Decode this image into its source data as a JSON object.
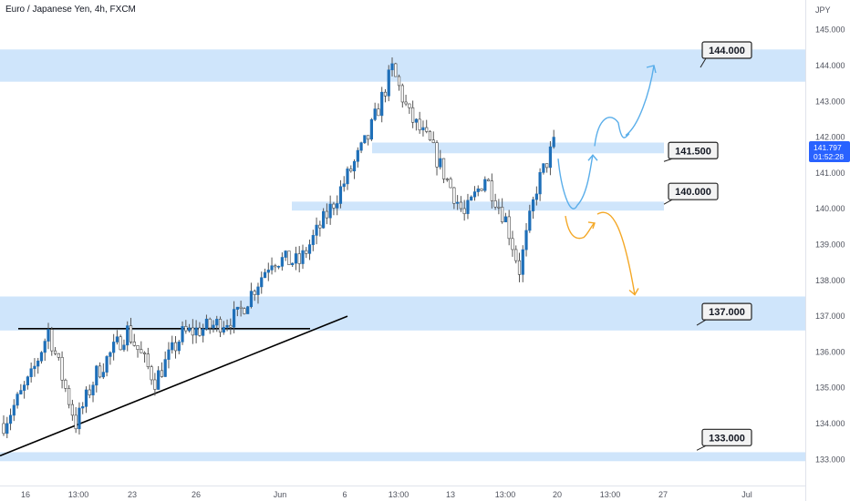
{
  "header": {
    "symbol_title": "Euro / Japanese Yen, 4h, FXCM"
  },
  "price_axis": {
    "currency": "JPY",
    "ticks": [
      "145.000",
      "144.000",
      "143.000",
      "142.000",
      "141.000",
      "140.000",
      "139.000",
      "138.000",
      "137.000",
      "136.000",
      "135.000",
      "134.000",
      "133.000"
    ]
  },
  "time_axis": {
    "ticks": [
      "16",
      "13:00",
      "23",
      "26",
      "Jun",
      "6",
      "13:00",
      "13",
      "13:00",
      "20",
      "13:00",
      "27",
      "Jul"
    ]
  },
  "last_price": {
    "value": "141.797",
    "countdown": "01:52:28",
    "color": "#2962ff"
  },
  "levels": [
    {
      "label": "144.000"
    },
    {
      "label": "141.500"
    },
    {
      "label": "140.000"
    },
    {
      "label": "137.000"
    },
    {
      "label": "133.000"
    }
  ],
  "colors": {
    "zone": "#cfe5fb",
    "candle_up": "#1e6fb8",
    "candle_down": "#ffffff",
    "wick": "#555555",
    "bull_path": "#5aaeea",
    "bear_path": "#f4a827",
    "trendline": "#000000"
  },
  "chart_data": {
    "type": "candlestick",
    "title": "Euro / Japanese Yen, 4h, FXCM",
    "y_unit": "JPY",
    "ylim": [
      132.9,
      145.25
    ],
    "x_tick_labels": [
      "16",
      "13:00",
      "23",
      "26",
      "Jun",
      "6",
      "13:00",
      "13",
      "13:00",
      "20",
      "13:00",
      "27",
      "Jul"
    ],
    "price_pivots": [
      {
        "i": 0,
        "p": 134.0
      },
      {
        "i": 8,
        "p": 135.3
      },
      {
        "i": 13,
        "p": 136.6
      },
      {
        "i": 21,
        "p": 134.0
      },
      {
        "i": 27,
        "p": 135.4
      },
      {
        "i": 36,
        "p": 136.6
      },
      {
        "i": 44,
        "p": 135.2
      },
      {
        "i": 52,
        "p": 136.5
      },
      {
        "i": 60,
        "p": 136.7
      },
      {
        "i": 68,
        "p": 137.0
      },
      {
        "i": 78,
        "p": 138.6
      },
      {
        "i": 86,
        "p": 138.5
      },
      {
        "i": 95,
        "p": 140.0
      },
      {
        "i": 106,
        "p": 142.0
      },
      {
        "i": 113,
        "p": 143.9
      },
      {
        "i": 118,
        "p": 142.6
      },
      {
        "i": 124,
        "p": 141.8
      },
      {
        "i": 128,
        "p": 141.0
      },
      {
        "i": 134,
        "p": 139.8
      },
      {
        "i": 140,
        "p": 140.9
      },
      {
        "i": 146,
        "p": 139.7
      },
      {
        "i": 150,
        "p": 138.3
      },
      {
        "i": 155,
        "p": 140.6
      },
      {
        "i": 160,
        "p": 141.8
      }
    ],
    "zones": [
      {
        "low": 143.55,
        "high": 144.45
      },
      {
        "low": 141.55,
        "high": 141.85
      },
      {
        "low": 139.95,
        "high": 140.2
      },
      {
        "low": 136.6,
        "high": 137.55
      },
      {
        "low": 132.95,
        "high": 133.2
      }
    ],
    "horizontal_resistance": 136.65,
    "rising_trendline": [
      {
        "i": 0,
        "p": 133.1
      },
      {
        "i": 100,
        "p": 137.0
      }
    ],
    "projection_bullish": [
      141.4,
      140.1,
      141.5,
      142.6,
      142.0,
      144.0
    ],
    "projection_bearish": [
      139.8,
      139.2,
      139.6,
      137.6
    ],
    "grid": false
  }
}
